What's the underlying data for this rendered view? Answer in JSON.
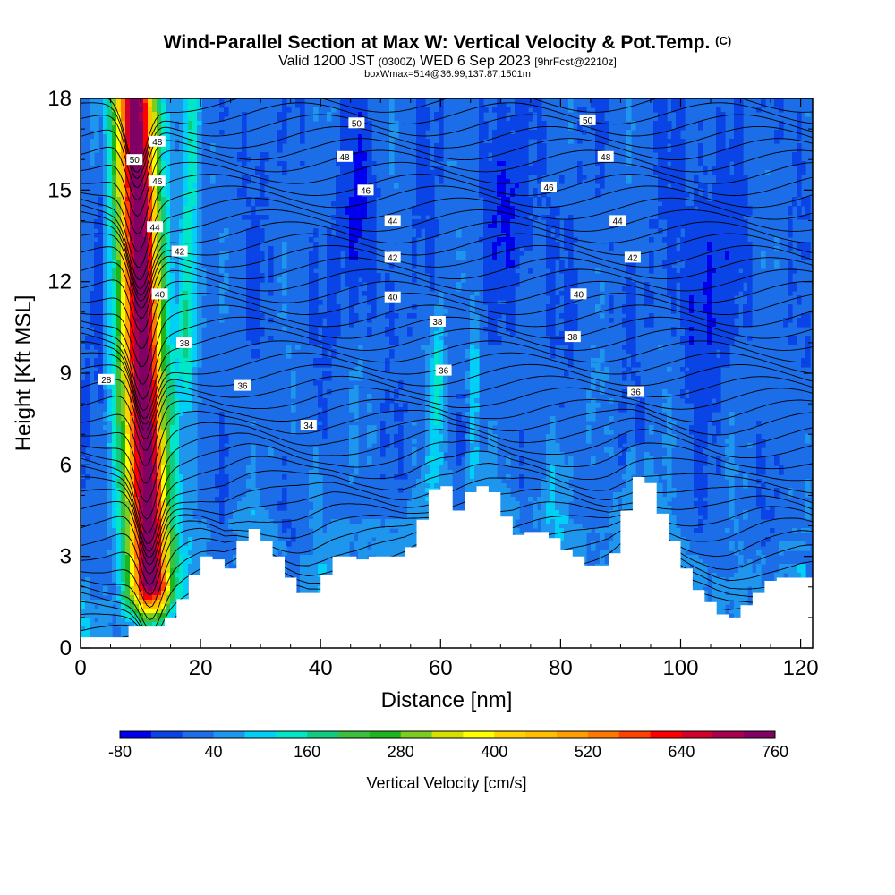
{
  "header": {
    "title": "Wind-Parallel Section at Max W: Vertical Velocity & Pot.Temp.",
    "copyright": "(C)",
    "valid_main": "Valid 1200 JST",
    "valid_utc": "(0300Z)",
    "valid_date": "WED 6 Sep 2023",
    "forecast": "[9hrFcst@2210z]",
    "box_info": "boxWmax=514@36.99,137.87,1501m"
  },
  "chart_data": {
    "type": "heatmap",
    "xlabel": "Distance [nm]",
    "ylabel": "Height [Kft MSL]",
    "xlim": [
      0,
      122
    ],
    "ylim": [
      0,
      18
    ],
    "x_ticks": [
      0,
      20,
      40,
      60,
      80,
      100,
      120
    ],
    "y_ticks": [
      0,
      3,
      6,
      9,
      12,
      15,
      18
    ],
    "colorbar": {
      "label": "Vertical Velocity [cm/s]",
      "min": -80,
      "step": 40,
      "tick_labels": [
        "-80",
        "40",
        "160",
        "280",
        "400",
        "520",
        "640",
        "760"
      ],
      "colors": [
        "#0000ee",
        "#0b44e6",
        "#1b6ee8",
        "#1e96ee",
        "#00d0f6",
        "#00e6c8",
        "#10cc80",
        "#3cbf3c",
        "#1eb41e",
        "#7ccd22",
        "#d6e000",
        "#ffff00",
        "#ffd200",
        "#ffbe00",
        "#ffa000",
        "#ff7800",
        "#ff4000",
        "#ff0000",
        "#d2002a",
        "#aa0050",
        "#800064"
      ]
    },
    "terrain": [
      [
        0,
        0.35
      ],
      [
        4,
        0.35
      ],
      [
        8,
        0.7
      ],
      [
        12,
        0.7
      ],
      [
        14,
        1.0
      ],
      [
        16,
        1.6
      ],
      [
        18,
        2.4
      ],
      [
        20,
        3.0
      ],
      [
        22,
        2.9
      ],
      [
        24,
        2.6
      ],
      [
        26,
        3.5
      ],
      [
        28,
        3.9
      ],
      [
        30,
        3.5
      ],
      [
        32,
        3.0
      ],
      [
        34,
        2.3
      ],
      [
        36,
        1.8
      ],
      [
        38,
        1.8
      ],
      [
        40,
        2.4
      ],
      [
        42,
        3.0
      ],
      [
        44,
        3.0
      ],
      [
        46,
        2.9
      ],
      [
        48,
        3.0
      ],
      [
        50,
        3.0
      ],
      [
        52,
        3.0
      ],
      [
        54,
        3.3
      ],
      [
        56,
        4.2
      ],
      [
        58,
        5.2
      ],
      [
        60,
        5.3
      ],
      [
        62,
        4.5
      ],
      [
        64,
        5.1
      ],
      [
        66,
        5.3
      ],
      [
        68,
        5.1
      ],
      [
        70,
        4.3
      ],
      [
        72,
        3.7
      ],
      [
        74,
        3.8
      ],
      [
        76,
        3.8
      ],
      [
        78,
        3.6
      ],
      [
        80,
        3.2
      ],
      [
        82,
        3.0
      ],
      [
        84,
        2.7
      ],
      [
        86,
        2.7
      ],
      [
        88,
        3.1
      ],
      [
        90,
        4.5
      ],
      [
        92,
        5.6
      ],
      [
        94,
        5.4
      ],
      [
        96,
        4.4
      ],
      [
        98,
        3.5
      ],
      [
        100,
        2.6
      ],
      [
        102,
        1.9
      ],
      [
        104,
        1.5
      ],
      [
        106,
        1.1
      ],
      [
        108,
        1.0
      ],
      [
        110,
        1.4
      ],
      [
        112,
        1.8
      ],
      [
        114,
        2.2
      ],
      [
        116,
        2.3
      ],
      [
        118,
        2.3
      ],
      [
        120,
        2.3
      ],
      [
        122,
        2.0
      ]
    ],
    "updraft_band": {
      "x_top": 9,
      "x_bottom": 12,
      "half_width_nm": 3.5,
      "peak": 760
    },
    "secondary_updraft": {
      "x_top": 18.5,
      "x_bottom": 17,
      "half_width_nm": 1.6,
      "peak": 150
    },
    "theta_labels": [
      {
        "x": 9,
        "y": 16.0,
        "text": "50"
      },
      {
        "x": 12.8,
        "y": 16.6,
        "text": "48"
      },
      {
        "x": 12.8,
        "y": 15.3,
        "text": "46"
      },
      {
        "x": 12.4,
        "y": 13.8,
        "text": "44"
      },
      {
        "x": 16.5,
        "y": 13.0,
        "text": "42"
      },
      {
        "x": 13.2,
        "y": 11.6,
        "text": "40"
      },
      {
        "x": 17.3,
        "y": 10.0,
        "text": "38"
      },
      {
        "x": 4.3,
        "y": 8.8,
        "text": "28"
      },
      {
        "x": 27,
        "y": 8.6,
        "text": "36"
      },
      {
        "x": 38,
        "y": 7.3,
        "text": "34"
      },
      {
        "x": 46,
        "y": 17.2,
        "text": "50"
      },
      {
        "x": 44,
        "y": 16.1,
        "text": "48"
      },
      {
        "x": 47.5,
        "y": 15.0,
        "text": "46"
      },
      {
        "x": 52,
        "y": 14.0,
        "text": "44"
      },
      {
        "x": 52,
        "y": 12.8,
        "text": "42"
      },
      {
        "x": 52,
        "y": 11.5,
        "text": "40"
      },
      {
        "x": 59.5,
        "y": 10.7,
        "text": "38"
      },
      {
        "x": 60.5,
        "y": 9.1,
        "text": "36"
      },
      {
        "x": 84.5,
        "y": 17.3,
        "text": "50"
      },
      {
        "x": 87.5,
        "y": 16.1,
        "text": "48"
      },
      {
        "x": 78,
        "y": 15.1,
        "text": "46"
      },
      {
        "x": 89.5,
        "y": 14.0,
        "text": "44"
      },
      {
        "x": 92,
        "y": 12.8,
        "text": "42"
      },
      {
        "x": 83,
        "y": 11.6,
        "text": "40"
      },
      {
        "x": 82,
        "y": 10.2,
        "text": "38"
      },
      {
        "x": 92.5,
        "y": 8.4,
        "text": "36"
      }
    ]
  }
}
